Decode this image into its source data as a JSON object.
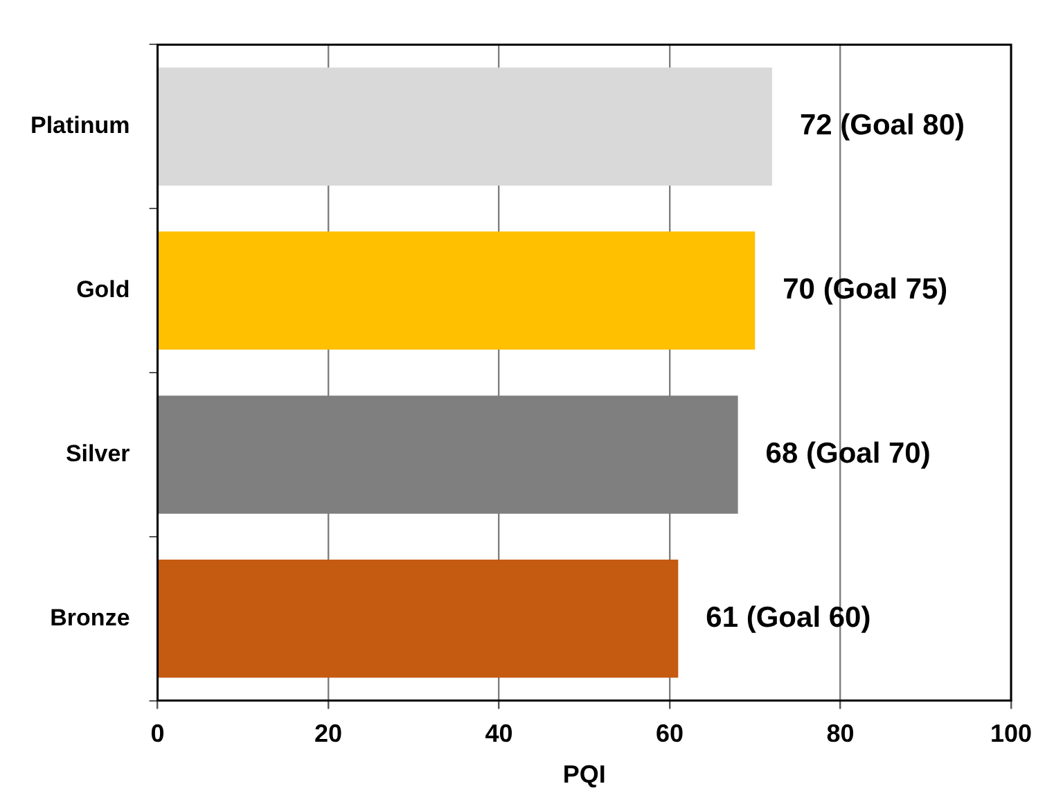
{
  "chart_data": {
    "type": "bar",
    "orientation": "horizontal",
    "xlabel": "PQI",
    "categories": [
      "Platinum",
      "Gold",
      "Silver",
      "Bronze"
    ],
    "values": [
      72,
      70,
      68,
      61
    ],
    "colors": [
      "#d9d9d9",
      "#ffc000",
      "#7f7f7f",
      "#c55a11"
    ],
    "value_labels": [
      "72 (Goal 80)",
      "70 (Goal 75)",
      "68 (Goal 70)",
      "61 (Goal 60)"
    ],
    "xlim": [
      0,
      100
    ],
    "xticks": [
      0,
      20,
      40,
      60,
      80,
      100
    ],
    "grid": "x",
    "legend": false
  }
}
